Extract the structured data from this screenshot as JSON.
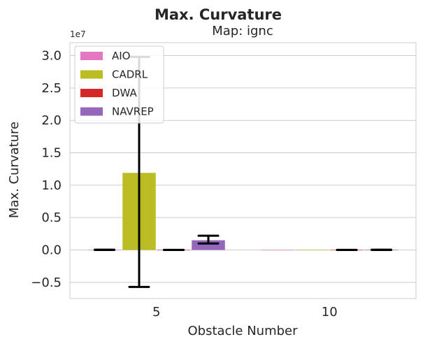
{
  "chart_data": {
    "type": "bar",
    "title": "Max. Curvature",
    "subtitle": "Map: ignc",
    "xlabel": "Obstacle Number",
    "ylabel": "Max. Curvature",
    "y_offset_label": "1e7",
    "y_scale": 10000000,
    "categories": [
      "5",
      "10"
    ],
    "ylim": [
      -0.75,
      3.2
    ],
    "yticks": [
      -0.5,
      0.0,
      0.5,
      1.0,
      1.5,
      2.0,
      2.5,
      3.0
    ],
    "ytick_labels": [
      "−0.5",
      "0.0",
      "0.5",
      "1.0",
      "1.5",
      "2.0",
      "2.5",
      "3.0"
    ],
    "grid": true,
    "legend_position": "top-left",
    "series": [
      {
        "name": "AIO",
        "color": "#e377c2",
        "values": [
          0.002,
          0.0
        ],
        "error": [
          [
            0.0,
            0.004
          ],
          null
        ]
      },
      {
        "name": "CADRL",
        "color": "#bcbd22",
        "values": [
          1.19,
          0.0
        ],
        "error": [
          [
            -0.57,
            2.98
          ],
          null
        ]
      },
      {
        "name": "DWA",
        "color": "#d62728",
        "values": [
          0.0005,
          0.0005
        ],
        "error": [
          [
            0.0,
            0.001
          ],
          [
            0.0,
            0.001
          ]
        ]
      },
      {
        "name": "NAVREP",
        "color": "#9467bd",
        "values": [
          0.15,
          0.002
        ],
        "error": [
          [
            0.1,
            0.22
          ],
          [
            0.0,
            0.004
          ]
        ]
      }
    ]
  }
}
